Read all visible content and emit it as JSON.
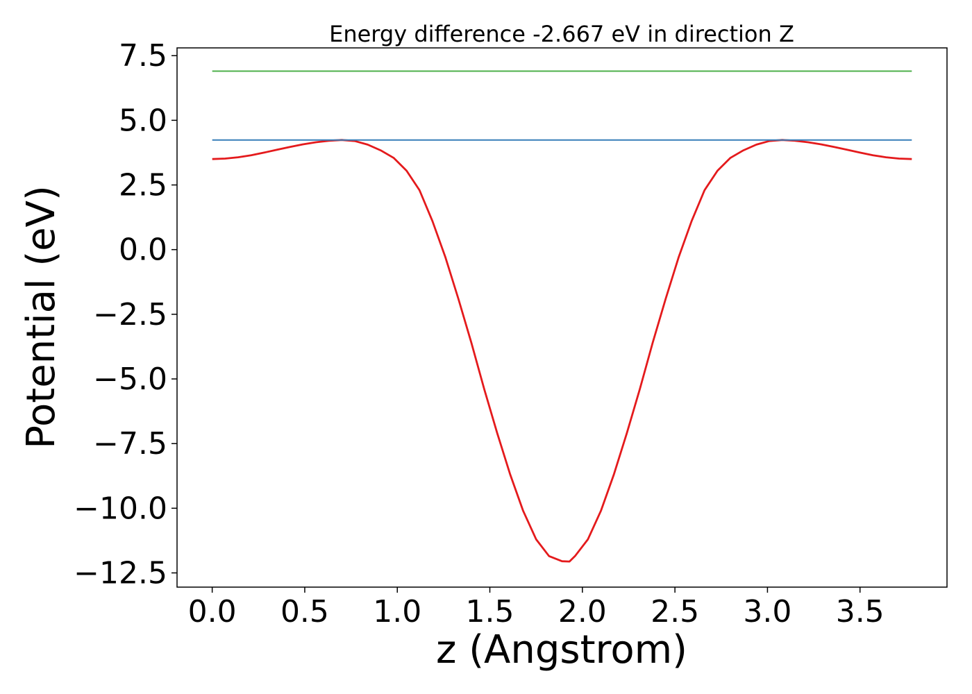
{
  "chart_data": {
    "type": "line",
    "title": "Energy difference -2.667 eV in direction Z",
    "xlabel": "z (Angstrom)",
    "ylabel": "Potential (eV)",
    "xlim": [
      -0.19,
      3.97
    ],
    "ylim": [
      -13.05,
      7.8
    ],
    "x_ticks": [
      0.0,
      0.5,
      1.0,
      1.5,
      2.0,
      2.5,
      3.0,
      3.5
    ],
    "x_tick_labels": [
      "0.0",
      "0.5",
      "1.0",
      "1.5",
      "2.0",
      "2.5",
      "3.0",
      "3.5"
    ],
    "y_ticks": [
      7.5,
      5.0,
      2.5,
      0.0,
      -2.5,
      -5.0,
      -7.5,
      -10.0,
      -12.5
    ],
    "y_tick_labels": [
      "7.5",
      "5.0",
      "2.5",
      "0.0",
      "−2.5",
      "−5.0",
      "−7.5",
      "−10.0",
      "−12.5"
    ],
    "grid": false,
    "legend": "none",
    "series": [
      {
        "color": "#e41a1c",
        "x": [
          0.0,
          0.07,
          0.14,
          0.21,
          0.28,
          0.35,
          0.42,
          0.49,
          0.56,
          0.63,
          0.7,
          0.77,
          0.84,
          0.91,
          0.98,
          1.05,
          1.12,
          1.19,
          1.26,
          1.33,
          1.4,
          1.47,
          1.54,
          1.61,
          1.68,
          1.75,
          1.82,
          1.89,
          1.93,
          1.96,
          2.03,
          2.1,
          2.17,
          2.24,
          2.31,
          2.38,
          2.45,
          2.52,
          2.59,
          2.66,
          2.73,
          2.8,
          2.87,
          2.94,
          3.01,
          3.08,
          3.15,
          3.22,
          3.29,
          3.36,
          3.43,
          3.5,
          3.57,
          3.64,
          3.71,
          3.78
        ],
        "y": [
          3.5,
          3.52,
          3.57,
          3.65,
          3.75,
          3.86,
          3.97,
          4.07,
          4.15,
          4.21,
          4.24,
          4.2,
          4.06,
          3.84,
          3.55,
          3.05,
          2.3,
          1.1,
          -0.3,
          -1.9,
          -3.6,
          -5.4,
          -7.1,
          -8.7,
          -10.1,
          -11.2,
          -11.85,
          -12.05,
          -12.06,
          -11.85,
          -11.2,
          -10.1,
          -8.7,
          -7.1,
          -5.4,
          -3.6,
          -1.9,
          -0.3,
          1.1,
          2.3,
          3.05,
          3.55,
          3.84,
          4.06,
          4.2,
          4.24,
          4.21,
          4.15,
          4.07,
          3.97,
          3.86,
          3.75,
          3.65,
          3.57,
          3.52,
          3.5
        ]
      },
      {
        "color": "#377eb8",
        "x": [
          0.0,
          3.78
        ],
        "y": [
          4.24,
          4.24
        ]
      },
      {
        "color": "#4daf4a",
        "x": [
          0.0,
          3.78
        ],
        "y": [
          6.9,
          6.9
        ]
      }
    ]
  }
}
